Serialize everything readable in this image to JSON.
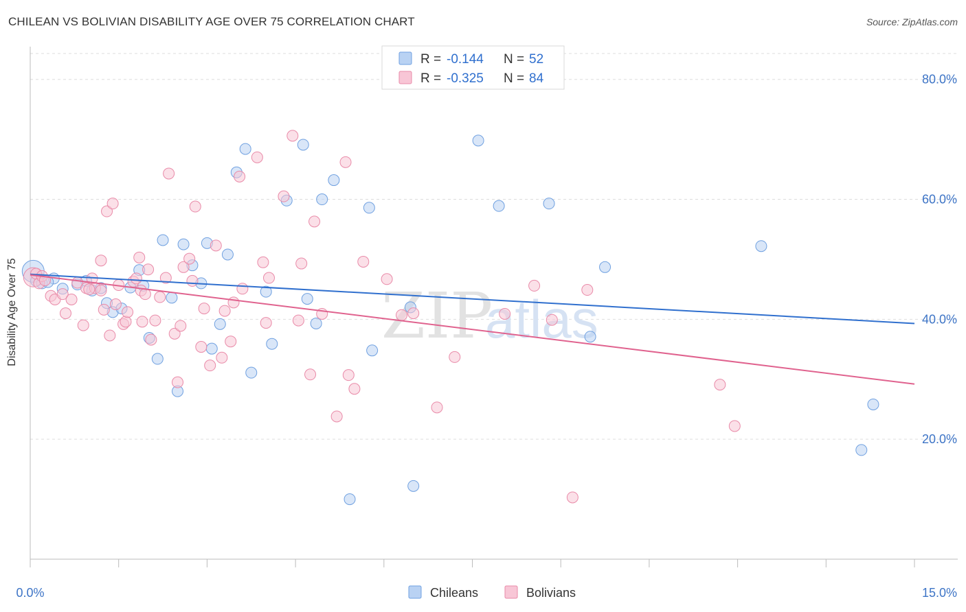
{
  "title": "CHILEAN VS BOLIVIAN DISABILITY AGE OVER 75 CORRELATION CHART",
  "source": "Source: ZipAtlas.com",
  "watermark": {
    "zip": "ZIP",
    "atlas": "atlas"
  },
  "legend_top": [
    {
      "r_label": "R = ",
      "r_value": "-0.144",
      "n_label": "N = ",
      "n_value": "52",
      "color": "#6fa0e0",
      "fill": "#b9d2f3"
    },
    {
      "r_label": "R = ",
      "r_value": "-0.325",
      "n_label": "N = ",
      "n_value": "84",
      "color": "#e98aa8",
      "fill": "#f8c6d6"
    }
  ],
  "legend_bottom": [
    {
      "label": "Chileans",
      "color": "#6fa0e0",
      "fill": "#b9d2f3"
    },
    {
      "label": "Bolivians",
      "color": "#e98aa8",
      "fill": "#f8c6d6"
    }
  ],
  "chart_data": {
    "type": "scatter",
    "title": "CHILEAN VS BOLIVIAN DISABILITY AGE OVER 75 CORRELATION CHART",
    "xlabel": "",
    "ylabel": "Disability Age Over 75",
    "xlim": [
      0,
      15
    ],
    "ylim": [
      0,
      85
    ],
    "x_tick_labels": [
      "0.0%",
      "15.0%"
    ],
    "y_ticks": [
      20,
      40,
      60,
      80
    ],
    "y_tick_labels": [
      "20.0%",
      "40.0%",
      "60.0%",
      "80.0%"
    ],
    "grid": true,
    "legend_placement": "top-center and bottom",
    "series": [
      {
        "name": "Chileans",
        "stroke": "#6fa0e0",
        "fill": "#b9d2f3",
        "trend_color": "#2f6fce",
        "trend": {
          "x": [
            0.0,
            15.0
          ],
          "y": [
            47.5,
            39.3
          ]
        },
        "points": [
          [
            0.05,
            48.0,
            16
          ],
          [
            0.1,
            46.4,
            8
          ],
          [
            0.2,
            46.0,
            8
          ],
          [
            0.4,
            46.8,
            8
          ],
          [
            0.55,
            45.1,
            8
          ],
          [
            0.8,
            45.8,
            8
          ],
          [
            0.95,
            46.4,
            8
          ],
          [
            1.05,
            44.8,
            8
          ],
          [
            1.2,
            45.2,
            8
          ],
          [
            1.3,
            42.7,
            8
          ],
          [
            1.4,
            41.2,
            8
          ],
          [
            1.55,
            41.8,
            8
          ],
          [
            1.7,
            45.3,
            8
          ],
          [
            1.85,
            48.2,
            8
          ],
          [
            1.92,
            45.6,
            8
          ],
          [
            2.02,
            36.9,
            8
          ],
          [
            2.16,
            33.4,
            8
          ],
          [
            2.25,
            53.2,
            8
          ],
          [
            2.4,
            43.6,
            8
          ],
          [
            2.5,
            28.0,
            8
          ],
          [
            2.6,
            52.5,
            8
          ],
          [
            2.75,
            49.0,
            8
          ],
          [
            2.9,
            46.0,
            8
          ],
          [
            3.0,
            52.7,
            8
          ],
          [
            3.08,
            35.1,
            8
          ],
          [
            3.22,
            39.2,
            8
          ],
          [
            3.35,
            50.8,
            8
          ],
          [
            3.5,
            64.5,
            8
          ],
          [
            3.65,
            68.4,
            8
          ],
          [
            3.75,
            31.1,
            8
          ],
          [
            4.0,
            44.6,
            8
          ],
          [
            4.1,
            35.9,
            8
          ],
          [
            4.35,
            59.8,
            8
          ],
          [
            4.63,
            69.1,
            8
          ],
          [
            4.7,
            43.4,
            8
          ],
          [
            4.85,
            39.3,
            8
          ],
          [
            4.95,
            60.0,
            8
          ],
          [
            5.15,
            63.2,
            8
          ],
          [
            5.42,
            10.0,
            8
          ],
          [
            5.75,
            58.6,
            8
          ],
          [
            5.8,
            34.8,
            8
          ],
          [
            6.45,
            42.0,
            8
          ],
          [
            6.5,
            12.2,
            8
          ],
          [
            7.6,
            69.8,
            8
          ],
          [
            7.95,
            58.9,
            8
          ],
          [
            8.8,
            59.3,
            8
          ],
          [
            9.5,
            37.1,
            8
          ],
          [
            9.75,
            48.7,
            8
          ],
          [
            12.4,
            52.2,
            8
          ],
          [
            14.3,
            25.8,
            8
          ],
          [
            14.1,
            18.2,
            8
          ],
          [
            0.3,
            46.2,
            8
          ]
        ]
      },
      {
        "name": "Bolivians",
        "stroke": "#e98aa8",
        "fill": "#f8c6d6",
        "trend_color": "#e0628e",
        "trend": {
          "x": [
            0.0,
            15.0
          ],
          "y": [
            47.4,
            29.2
          ]
        },
        "points": [
          [
            0.05,
            47.0,
            14
          ],
          [
            0.1,
            47.6,
            8
          ],
          [
            0.15,
            46.0,
            8
          ],
          [
            0.2,
            47.2,
            8
          ],
          [
            0.35,
            43.9,
            8
          ],
          [
            0.42,
            43.3,
            8
          ],
          [
            0.6,
            41.0,
            8
          ],
          [
            0.55,
            44.2,
            8
          ],
          [
            0.7,
            43.3,
            8
          ],
          [
            0.8,
            46.1,
            8
          ],
          [
            0.9,
            39.0,
            8
          ],
          [
            0.95,
            45.2,
            8
          ],
          [
            1.05,
            46.8,
            8
          ],
          [
            1.1,
            45.2,
            8
          ],
          [
            1.2,
            44.8,
            8
          ],
          [
            1.25,
            41.6,
            8
          ],
          [
            1.2,
            49.8,
            8
          ],
          [
            1.3,
            58.0,
            8
          ],
          [
            1.35,
            37.3,
            8
          ],
          [
            1.4,
            59.3,
            8
          ],
          [
            1.45,
            42.5,
            8
          ],
          [
            1.5,
            45.7,
            8
          ],
          [
            1.58,
            39.2,
            8
          ],
          [
            1.62,
            39.6,
            8
          ],
          [
            1.65,
            41.2,
            8
          ],
          [
            1.75,
            46.3,
            8
          ],
          [
            1.8,
            46.8,
            8
          ],
          [
            1.85,
            50.3,
            8
          ],
          [
            1.88,
            44.8,
            8
          ],
          [
            1.9,
            39.6,
            8
          ],
          [
            1.95,
            44.2,
            8
          ],
          [
            2.0,
            48.3,
            8
          ],
          [
            2.05,
            36.6,
            8
          ],
          [
            2.12,
            39.8,
            8
          ],
          [
            2.2,
            43.7,
            8
          ],
          [
            2.3,
            46.9,
            8
          ],
          [
            2.35,
            64.3,
            8
          ],
          [
            2.45,
            37.6,
            8
          ],
          [
            2.5,
            29.5,
            8
          ],
          [
            2.55,
            38.9,
            8
          ],
          [
            2.6,
            48.7,
            8
          ],
          [
            2.7,
            50.1,
            8
          ],
          [
            2.75,
            46.4,
            8
          ],
          [
            2.8,
            58.8,
            8
          ],
          [
            2.9,
            35.4,
            8
          ],
          [
            2.95,
            41.8,
            8
          ],
          [
            3.05,
            32.3,
            8
          ],
          [
            3.15,
            52.3,
            8
          ],
          [
            3.25,
            33.6,
            8
          ],
          [
            3.3,
            41.4,
            8
          ],
          [
            3.4,
            36.3,
            8
          ],
          [
            3.45,
            42.8,
            8
          ],
          [
            3.55,
            63.8,
            8
          ],
          [
            3.6,
            45.1,
            8
          ],
          [
            3.85,
            67.0,
            8
          ],
          [
            3.95,
            49.5,
            8
          ],
          [
            4.0,
            39.4,
            8
          ],
          [
            4.05,
            46.9,
            8
          ],
          [
            4.3,
            60.5,
            8
          ],
          [
            4.45,
            70.6,
            8
          ],
          [
            4.55,
            39.8,
            8
          ],
          [
            4.6,
            49.3,
            8
          ],
          [
            4.75,
            30.8,
            8
          ],
          [
            4.82,
            56.3,
            8
          ],
          [
            4.95,
            40.9,
            8
          ],
          [
            5.2,
            23.8,
            8
          ],
          [
            5.35,
            66.2,
            8
          ],
          [
            5.4,
            30.7,
            8
          ],
          [
            5.5,
            28.4,
            8
          ],
          [
            5.65,
            49.6,
            8
          ],
          [
            6.05,
            46.7,
            8
          ],
          [
            6.3,
            40.7,
            8
          ],
          [
            6.5,
            41.0,
            8
          ],
          [
            6.9,
            25.3,
            8
          ],
          [
            7.2,
            33.7,
            8
          ],
          [
            8.05,
            40.9,
            8
          ],
          [
            8.55,
            45.6,
            8
          ],
          [
            8.85,
            39.9,
            8
          ],
          [
            9.2,
            10.3,
            8
          ],
          [
            9.45,
            44.9,
            8
          ],
          [
            11.7,
            29.1,
            8
          ],
          [
            11.95,
            22.2,
            8
          ],
          [
            0.25,
            46.5,
            8
          ],
          [
            1.0,
            45.0,
            8
          ]
        ]
      }
    ]
  }
}
